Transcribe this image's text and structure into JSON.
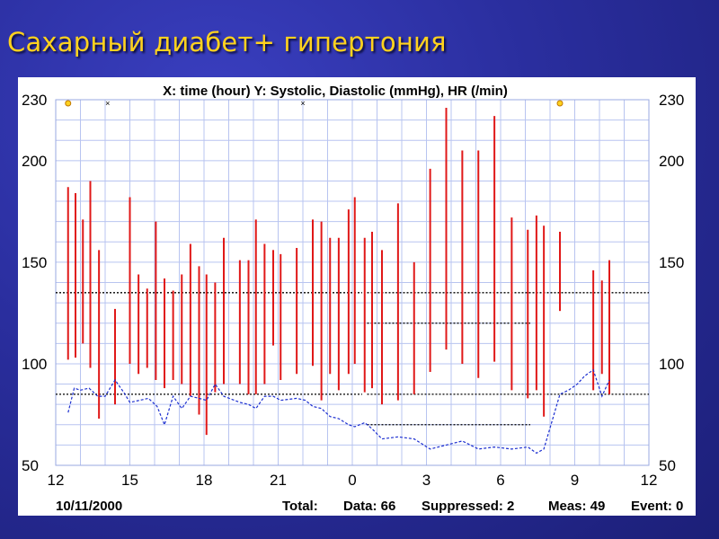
{
  "slide": {
    "title": "Сахарный диабет+ гипертония",
    "background_color": "#2a2e9e",
    "title_color": "#ffd21e"
  },
  "chart_data": {
    "type": "range-bar + line",
    "title": "X: time (hour)  Y: Systolic, Diastolic (mmHg), HR (/min)",
    "date": "10/11/2000",
    "footer": {
      "total_label": "Total:",
      "data": "Data: 66",
      "suppressed": "Suppressed: 2",
      "meas": "Meas: 49",
      "event": "Event: 0"
    },
    "x_ticks": [
      "12",
      "15",
      "18",
      "21",
      "0",
      "3",
      "6",
      "9",
      "12"
    ],
    "y_ticks": [
      230,
      200,
      150,
      100,
      50
    ],
    "y_range": [
      50,
      230
    ],
    "x_range_hours": [
      12,
      36
    ],
    "grid": true,
    "colors": {
      "bp_bars": "#e01818",
      "hr_line": "#1c2fd0",
      "grid": "#b8c4f0",
      "thresholds": "#000000"
    },
    "bp_series": {
      "name": "Systolic/Diastolic",
      "points": [
        {
          "t": 12.5,
          "sys": 187,
          "dia": 102
        },
        {
          "t": 12.8,
          "sys": 184,
          "dia": 103
        },
        {
          "t": 13.1,
          "sys": 171,
          "dia": 110
        },
        {
          "t": 13.4,
          "sys": 190,
          "dia": 98
        },
        {
          "t": 13.75,
          "sys": 156,
          "dia": 73
        },
        {
          "t": 14.4,
          "sys": 127,
          "dia": 80
        },
        {
          "t": 15.0,
          "sys": 182,
          "dia": 100
        },
        {
          "t": 15.35,
          "sys": 144,
          "dia": 95
        },
        {
          "t": 15.7,
          "sys": 137,
          "dia": 98
        },
        {
          "t": 16.05,
          "sys": 170,
          "dia": 92
        },
        {
          "t": 16.4,
          "sys": 142,
          "dia": 88
        },
        {
          "t": 16.75,
          "sys": 136,
          "dia": 92
        },
        {
          "t": 17.1,
          "sys": 144,
          "dia": 90
        },
        {
          "t": 17.45,
          "sys": 159,
          "dia": 84
        },
        {
          "t": 17.8,
          "sys": 148,
          "dia": 75
        },
        {
          "t": 18.1,
          "sys": 144,
          "dia": 65
        },
        {
          "t": 18.45,
          "sys": 140,
          "dia": 86
        },
        {
          "t": 18.8,
          "sys": 162,
          "dia": 90
        },
        {
          "t": 19.45,
          "sys": 151,
          "dia": 90
        },
        {
          "t": 19.8,
          "sys": 151,
          "dia": 85
        },
        {
          "t": 20.1,
          "sys": 171,
          "dia": 85
        },
        {
          "t": 20.45,
          "sys": 159,
          "dia": 90
        },
        {
          "t": 20.8,
          "sys": 156,
          "dia": 109
        },
        {
          "t": 21.1,
          "sys": 154,
          "dia": 92
        },
        {
          "t": 21.75,
          "sys": 157,
          "dia": 95
        },
        {
          "t": 22.4,
          "sys": 171,
          "dia": 99
        },
        {
          "t": 22.75,
          "sys": 170,
          "dia": 82
        },
        {
          "t": 23.1,
          "sys": 162,
          "dia": 95
        },
        {
          "t": 23.45,
          "sys": 162,
          "dia": 87
        },
        {
          "t": 23.85,
          "sys": 176,
          "dia": 95
        },
        {
          "t": 24.1,
          "sys": 182,
          "dia": 100
        },
        {
          "t": 24.5,
          "sys": 162,
          "dia": 86
        },
        {
          "t": 24.8,
          "sys": 165,
          "dia": 88
        },
        {
          "t": 25.2,
          "sys": 156,
          "dia": 80
        },
        {
          "t": 25.85,
          "sys": 179,
          "dia": 82
        },
        {
          "t": 26.5,
          "sys": 150,
          "dia": 85
        },
        {
          "t": 27.15,
          "sys": 196,
          "dia": 96
        },
        {
          "t": 27.8,
          "sys": 226,
          "dia": 107
        },
        {
          "t": 28.45,
          "sys": 205,
          "dia": 100
        },
        {
          "t": 29.1,
          "sys": 205,
          "dia": 93
        },
        {
          "t": 29.75,
          "sys": 222,
          "dia": 101
        },
        {
          "t": 30.45,
          "sys": 172,
          "dia": 87
        },
        {
          "t": 31.1,
          "sys": 166,
          "dia": 83
        },
        {
          "t": 31.45,
          "sys": 173,
          "dia": 87
        },
        {
          "t": 31.75,
          "sys": 168,
          "dia": 74
        },
        {
          "t": 32.4,
          "sys": 165,
          "dia": 126
        },
        {
          "t": 33.75,
          "sys": 146,
          "dia": 87
        },
        {
          "t": 34.1,
          "sys": 141,
          "dia": 95
        },
        {
          "t": 34.4,
          "sys": 151,
          "dia": 85
        }
      ]
    },
    "hr_series": {
      "name": "HR",
      "points": [
        [
          12.5,
          76
        ],
        [
          12.75,
          88
        ],
        [
          13.0,
          87
        ],
        [
          13.35,
          88
        ],
        [
          13.7,
          84
        ],
        [
          14.0,
          84
        ],
        [
          14.4,
          92
        ],
        [
          14.75,
          86
        ],
        [
          15.0,
          81
        ],
        [
          15.4,
          82
        ],
        [
          15.75,
          83
        ],
        [
          16.1,
          79
        ],
        [
          16.4,
          70
        ],
        [
          16.75,
          84
        ],
        [
          17.1,
          78
        ],
        [
          17.45,
          84
        ],
        [
          17.8,
          83
        ],
        [
          18.1,
          82
        ],
        [
          18.45,
          90
        ],
        [
          18.8,
          84
        ],
        [
          19.45,
          81
        ],
        [
          19.8,
          80
        ],
        [
          20.1,
          78
        ],
        [
          20.45,
          84
        ],
        [
          20.8,
          84
        ],
        [
          21.1,
          82
        ],
        [
          21.75,
          83
        ],
        [
          22.1,
          82
        ],
        [
          22.4,
          79
        ],
        [
          22.75,
          78
        ],
        [
          23.1,
          74
        ],
        [
          23.45,
          73
        ],
        [
          23.85,
          70
        ],
        [
          24.1,
          69
        ],
        [
          24.5,
          71
        ],
        [
          24.8,
          68
        ],
        [
          25.2,
          63
        ],
        [
          25.85,
          64
        ],
        [
          26.5,
          63
        ],
        [
          27.15,
          58
        ],
        [
          27.8,
          60
        ],
        [
          28.45,
          62
        ],
        [
          29.1,
          58
        ],
        [
          29.75,
          59
        ],
        [
          30.45,
          58
        ],
        [
          31.1,
          59
        ],
        [
          31.45,
          56
        ],
        [
          31.75,
          58
        ],
        [
          32.4,
          85
        ],
        [
          32.75,
          87
        ],
        [
          33.1,
          90
        ],
        [
          33.4,
          94
        ],
        [
          33.75,
          97
        ],
        [
          34.1,
          84
        ],
        [
          34.4,
          92
        ]
      ]
    },
    "thresholds": [
      {
        "from": 12,
        "to": 24.4,
        "value": 135
      },
      {
        "from": 24.6,
        "to": 36,
        "value": 135
      },
      {
        "from": 12,
        "to": 24.4,
        "value": 85
      },
      {
        "from": 24.6,
        "to": 36,
        "value": 85
      },
      {
        "from": 24.6,
        "to": 31.2,
        "value": 120
      },
      {
        "from": 24.6,
        "to": 31.2,
        "value": 70
      }
    ],
    "markers": [
      {
        "t": 12.5,
        "y": 230,
        "kind": "o"
      },
      {
        "t": 14.1,
        "y": 230,
        "kind": "x"
      },
      {
        "t": 22.0,
        "y": 230,
        "kind": "x"
      },
      {
        "t": 32.4,
        "y": 230,
        "kind": "o"
      }
    ]
  }
}
